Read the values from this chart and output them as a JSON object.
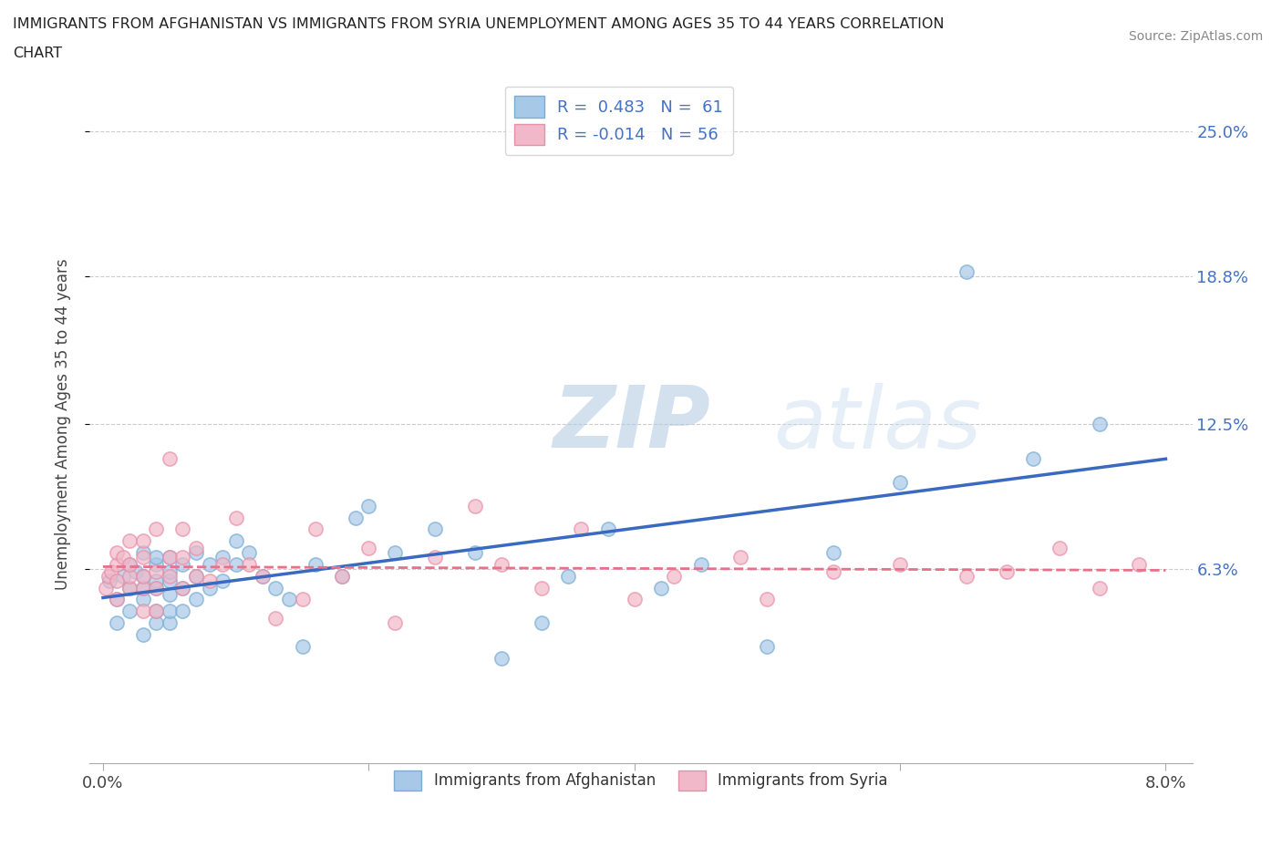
{
  "title_line1": "IMMIGRANTS FROM AFGHANISTAN VS IMMIGRANTS FROM SYRIA UNEMPLOYMENT AMONG AGES 35 TO 44 YEARS CORRELATION",
  "title_line2": "CHART",
  "source_text": "Source: ZipAtlas.com",
  "ylabel": "Unemployment Among Ages 35 to 44 years",
  "xlim": [
    -0.001,
    0.082
  ],
  "ylim": [
    -0.02,
    0.27
  ],
  "xticks": [
    0.0,
    0.02,
    0.04,
    0.06,
    0.08
  ],
  "xticklabels": [
    "0.0%",
    "",
    "",
    "",
    "8.0%"
  ],
  "ytick_positions": [
    0.063,
    0.125,
    0.188,
    0.25
  ],
  "ytick_labels": [
    "6.3%",
    "12.5%",
    "18.8%",
    "25.0%"
  ],
  "afghanistan_color": "#a8c8e8",
  "afghanistan_edge_color": "#7aadd4",
  "syria_color": "#f0b8c8",
  "syria_edge_color": "#e890a8",
  "afghanistan_line_color": "#3a6abf",
  "syria_line_color": "#e8708a",
  "R_afghanistan": 0.483,
  "N_afghanistan": 61,
  "R_syria": -0.014,
  "N_syria": 56,
  "watermark": "ZIPatlas",
  "legend_labels": [
    "Immigrants from Afghanistan",
    "Immigrants from Syria"
  ],
  "afghanistan_x": [
    0.0005,
    0.001,
    0.001,
    0.0015,
    0.002,
    0.002,
    0.002,
    0.0025,
    0.003,
    0.003,
    0.003,
    0.003,
    0.003,
    0.004,
    0.004,
    0.004,
    0.004,
    0.004,
    0.004,
    0.005,
    0.005,
    0.005,
    0.005,
    0.005,
    0.005,
    0.006,
    0.006,
    0.006,
    0.007,
    0.007,
    0.007,
    0.008,
    0.008,
    0.009,
    0.009,
    0.01,
    0.01,
    0.011,
    0.012,
    0.013,
    0.014,
    0.015,
    0.016,
    0.018,
    0.019,
    0.02,
    0.022,
    0.025,
    0.028,
    0.03,
    0.033,
    0.035,
    0.038,
    0.042,
    0.045,
    0.05,
    0.055,
    0.06,
    0.065,
    0.07,
    0.075
  ],
  "afghanistan_y": [
    0.058,
    0.05,
    0.04,
    0.06,
    0.045,
    0.055,
    0.065,
    0.062,
    0.035,
    0.05,
    0.055,
    0.06,
    0.07,
    0.04,
    0.045,
    0.055,
    0.058,
    0.065,
    0.068,
    0.04,
    0.045,
    0.052,
    0.058,
    0.062,
    0.068,
    0.045,
    0.055,
    0.065,
    0.05,
    0.06,
    0.07,
    0.055,
    0.065,
    0.058,
    0.068,
    0.065,
    0.075,
    0.07,
    0.06,
    0.055,
    0.05,
    0.03,
    0.065,
    0.06,
    0.085,
    0.09,
    0.07,
    0.08,
    0.07,
    0.025,
    0.04,
    0.06,
    0.08,
    0.055,
    0.065,
    0.03,
    0.07,
    0.1,
    0.19,
    0.11,
    0.125
  ],
  "syria_x": [
    0.0002,
    0.0004,
    0.0006,
    0.001,
    0.001,
    0.001,
    0.001,
    0.0015,
    0.002,
    0.002,
    0.002,
    0.002,
    0.003,
    0.003,
    0.003,
    0.003,
    0.003,
    0.004,
    0.004,
    0.004,
    0.004,
    0.005,
    0.005,
    0.005,
    0.006,
    0.006,
    0.006,
    0.007,
    0.007,
    0.008,
    0.009,
    0.01,
    0.011,
    0.012,
    0.013,
    0.015,
    0.016,
    0.018,
    0.02,
    0.022,
    0.025,
    0.028,
    0.03,
    0.033,
    0.036,
    0.04,
    0.043,
    0.048,
    0.05,
    0.055,
    0.06,
    0.065,
    0.068,
    0.072,
    0.075,
    0.078
  ],
  "syria_y": [
    0.055,
    0.06,
    0.062,
    0.05,
    0.058,
    0.065,
    0.07,
    0.068,
    0.055,
    0.06,
    0.065,
    0.075,
    0.045,
    0.055,
    0.06,
    0.068,
    0.075,
    0.045,
    0.055,
    0.062,
    0.08,
    0.06,
    0.068,
    0.11,
    0.055,
    0.068,
    0.08,
    0.06,
    0.072,
    0.058,
    0.065,
    0.085,
    0.065,
    0.06,
    0.042,
    0.05,
    0.08,
    0.06,
    0.072,
    0.04,
    0.068,
    0.09,
    0.065,
    0.055,
    0.08,
    0.05,
    0.06,
    0.068,
    0.05,
    0.062,
    0.065,
    0.06,
    0.062,
    0.072,
    0.055,
    0.065
  ]
}
